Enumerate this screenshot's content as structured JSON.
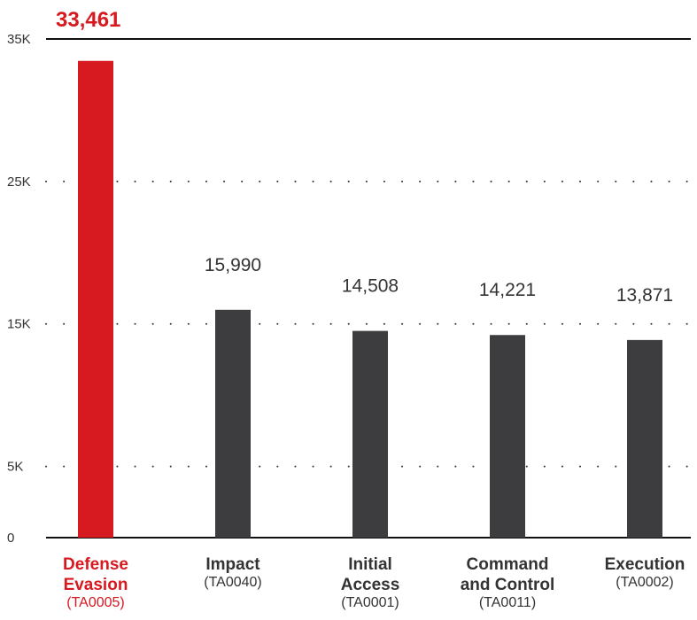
{
  "colors": {
    "highlight": "#d71920",
    "bar": "#3d3d3f",
    "text": "#333333",
    "axis": "#111111",
    "grid": "#333333"
  },
  "chart_data": {
    "type": "bar",
    "title": "",
    "xlabel": "",
    "ylabel": "",
    "ylim": [
      0,
      35000
    ],
    "grid": "dotted horizontal at tick values",
    "ticks": [
      {
        "value": 0,
        "label": "0"
      },
      {
        "value": 5000,
        "label": "5K"
      },
      {
        "value": 15000,
        "label": "15K"
      },
      {
        "value": 25000,
        "label": "25K"
      },
      {
        "value": 35000,
        "label": "35K"
      }
    ],
    "categories": [
      {
        "name_lines": [
          "Defense",
          "Evasion"
        ],
        "code": "(TA0005)",
        "value": 33461,
        "value_label": "33,461",
        "highlight": true
      },
      {
        "name_lines": [
          "Impact"
        ],
        "code": "(TA0040)",
        "value": 15990,
        "value_label": "15,990",
        "highlight": false
      },
      {
        "name_lines": [
          "Initial",
          "Access"
        ],
        "code": "(TA0001)",
        "value": 14508,
        "value_label": "14,508",
        "highlight": false
      },
      {
        "name_lines": [
          "Command",
          "and Control"
        ],
        "code": "(TA0011)",
        "value": 14221,
        "value_label": "14,221",
        "highlight": false
      },
      {
        "name_lines": [
          "Execution"
        ],
        "code": "(TA0002)",
        "value": 13871,
        "value_label": "13,871",
        "highlight": false
      }
    ]
  }
}
